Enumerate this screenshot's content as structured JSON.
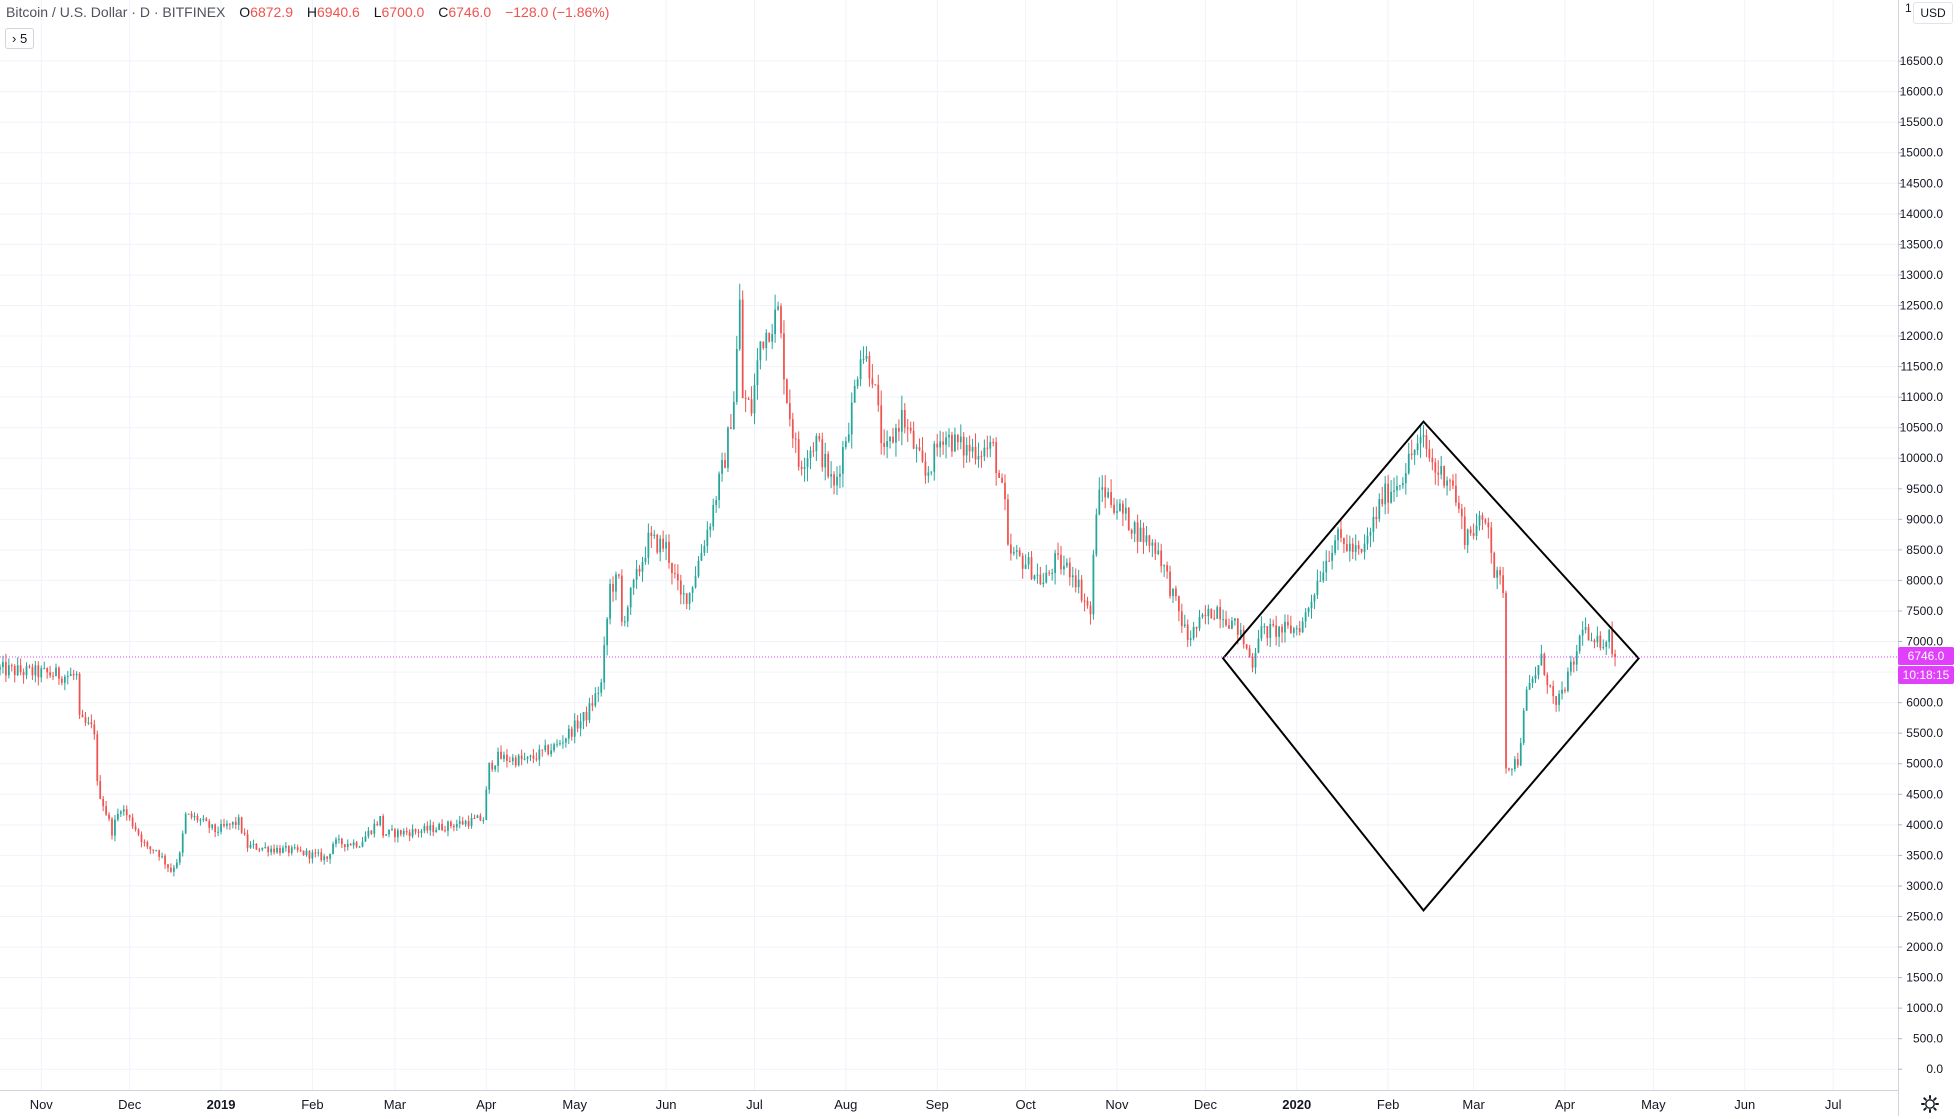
{
  "header": {
    "symbol": "Bitcoin / U.S. Dollar · D · BITFINEX",
    "o_label": "O",
    "o_value": "6872.9",
    "h_label": "H",
    "h_value": "6940.6",
    "l_label": "L",
    "l_value": "6700.0",
    "c_label": "C",
    "c_value": "6746.0",
    "change": "−128.0 (−1.86%)",
    "indicator_button": "› 5"
  },
  "price_scale": {
    "currency": "USD",
    "top_tick": "1",
    "last_price": "6746.0",
    "countdown": "10:18:15"
  },
  "colors": {
    "up": "#26a69a",
    "down": "#ef5350",
    "last_price_line": "#e040fb",
    "grid": "#f0f3fa",
    "axis_text": "#131722",
    "shape": "#000000"
  },
  "chart_data": {
    "type": "candlestick",
    "symbol": "Bitcoin / U.S. Dollar",
    "interval": "D",
    "exchange": "BITFINEX",
    "last_price": 6746.0,
    "y_ticks": [
      0,
      500,
      1000,
      1500,
      2000,
      2500,
      3000,
      3500,
      4000,
      4500,
      5000,
      5500,
      6000,
      6500,
      7000,
      7500,
      8000,
      8500,
      9000,
      9500,
      10000,
      10500,
      11000,
      11500,
      12000,
      12500,
      13000,
      13500,
      14000,
      14500,
      15000,
      15500,
      16000,
      16500
    ],
    "x_labels": [
      "Nov",
      "Dec",
      "2019",
      "Feb",
      "Mar",
      "Apr",
      "May",
      "Jun",
      "Jul",
      "Aug",
      "Sep",
      "Oct",
      "Nov",
      "Dec",
      "2020",
      "Feb",
      "Mar",
      "Apr",
      "May",
      "Jun",
      "Jul"
    ],
    "x_label_dates": [
      "2018-11-01",
      "2018-12-01",
      "2019-01-01",
      "2019-02-01",
      "2019-03-01",
      "2019-04-01",
      "2019-05-01",
      "2019-06-01",
      "2019-07-01",
      "2019-08-01",
      "2019-09-01",
      "2019-10-01",
      "2019-11-01",
      "2019-12-01",
      "2020-01-01",
      "2020-02-01",
      "2020-03-01",
      "2020-04-01",
      "2020-05-01",
      "2020-06-01",
      "2020-07-01"
    ],
    "x_range": [
      "2018-10-18",
      "2020-07-23"
    ],
    "y_range": [
      -340,
      17500
    ],
    "close_path": [
      [
        "2018-10-18",
        6540
      ],
      [
        "2018-11-13",
        6430
      ],
      [
        "2018-11-14",
        5700
      ],
      [
        "2018-11-19",
        5550
      ],
      [
        "2018-11-20",
        4650
      ],
      [
        "2018-11-25",
        3900
      ],
      [
        "2018-11-28",
        4300
      ],
      [
        "2018-12-03",
        3950
      ],
      [
        "2018-12-07",
        3600
      ],
      [
        "2018-12-10",
        3600
      ],
      [
        "2018-12-15",
        3250
      ],
      [
        "2018-12-18",
        3500
      ],
      [
        "2018-12-20",
        4150
      ],
      [
        "2018-12-24",
        4100
      ],
      [
        "2018-12-30",
        3900
      ],
      [
        "2019-01-07",
        4050
      ],
      [
        "2019-01-10",
        3650
      ],
      [
        "2019-01-20",
        3600
      ],
      [
        "2019-01-27",
        3560
      ],
      [
        "2019-02-06",
        3450
      ],
      [
        "2019-02-08",
        3700
      ],
      [
        "2019-02-17",
        3700
      ],
      [
        "2019-02-24",
        4100
      ],
      [
        "2019-02-25",
        3850
      ],
      [
        "2019-03-10",
        3900
      ],
      [
        "2019-03-20",
        4000
      ],
      [
        "2019-03-31",
        4100
      ],
      [
        "2019-04-02",
        4950
      ],
      [
        "2019-04-05",
        5100
      ],
      [
        "2019-04-15",
        5050
      ],
      [
        "2019-04-25",
        5300
      ],
      [
        "2019-05-05",
        5800
      ],
      [
        "2019-05-10",
        6300
      ],
      [
        "2019-05-13",
        7900
      ],
      [
        "2019-05-16",
        8000
      ],
      [
        "2019-05-17",
        7300
      ],
      [
        "2019-05-26",
        8650
      ],
      [
        "2019-06-01",
        8550
      ],
      [
        "2019-06-06",
        7700
      ],
      [
        "2019-06-09",
        7800
      ],
      [
        "2019-06-16",
        9000
      ],
      [
        "2019-06-21",
        10000
      ],
      [
        "2019-06-24",
        11000
      ],
      [
        "2019-06-26",
        12500
      ],
      [
        "2019-06-27",
        11000
      ],
      [
        "2019-06-30",
        10800
      ],
      [
        "2019-07-03",
        11900
      ],
      [
        "2019-07-09",
        12400
      ],
      [
        "2019-07-12",
        11000
      ],
      [
        "2019-07-16",
        9900
      ],
      [
        "2019-07-22",
        10300
      ],
      [
        "2019-07-28",
        9500
      ],
      [
        "2019-08-03",
        10800
      ],
      [
        "2019-08-06",
        11800
      ],
      [
        "2019-08-10",
        11400
      ],
      [
        "2019-08-14",
        10000
      ],
      [
        "2019-08-20",
        10700
      ],
      [
        "2019-08-28",
        9700
      ],
      [
        "2019-09-03",
        10400
      ],
      [
        "2019-09-10",
        10150
      ],
      [
        "2019-09-20",
        10150
      ],
      [
        "2019-09-24",
        9200
      ],
      [
        "2019-09-25",
        8450
      ],
      [
        "2019-10-01",
        8300
      ],
      [
        "2019-10-07",
        7950
      ],
      [
        "2019-10-11",
        8300
      ],
      [
        "2019-10-17",
        8150
      ],
      [
        "2019-10-23",
        7450
      ],
      [
        "2019-10-25",
        9200
      ],
      [
        "2019-10-27",
        9500
      ],
      [
        "2019-11-01",
        9200
      ],
      [
        "2019-11-08",
        8800
      ],
      [
        "2019-11-15",
        8500
      ],
      [
        "2019-11-21",
        7600
      ],
      [
        "2019-11-25",
        7050
      ],
      [
        "2019-12-01",
        7400
      ],
      [
        "2019-12-05",
        7550
      ],
      [
        "2019-12-12",
        7200
      ],
      [
        "2019-12-17",
        6650
      ],
      [
        "2019-12-19",
        7150
      ],
      [
        "2019-12-31",
        7200
      ],
      [
        "2020-01-03",
        7300
      ],
      [
        "2020-01-08",
        8000
      ],
      [
        "2020-01-14",
        8700
      ],
      [
        "2020-01-23",
        8400
      ],
      [
        "2020-01-30",
        9350
      ],
      [
        "2020-02-05",
        9650
      ],
      [
        "2020-02-10",
        10150
      ],
      [
        "2020-02-13",
        10250
      ],
      [
        "2020-02-17",
        9800
      ],
      [
        "2020-02-22",
        9700
      ],
      [
        "2020-02-27",
        8750
      ],
      [
        "2020-03-06",
        9000
      ],
      [
        "2020-03-08",
        8100
      ],
      [
        "2020-03-11",
        7900
      ],
      [
        "2020-03-12",
        4950
      ],
      [
        "2020-03-16",
        5050
      ],
      [
        "2020-03-19",
        6150
      ],
      [
        "2020-03-24",
        6700
      ],
      [
        "2020-03-29",
        5900
      ],
      [
        "2020-04-05",
        6800
      ],
      [
        "2020-04-07",
        7300
      ],
      [
        "2020-04-10",
        6900
      ],
      [
        "2020-04-16",
        7100
      ],
      [
        "2020-04-18",
        6746
      ]
    ],
    "drawings": [
      {
        "type": "diamond",
        "vertices": [
          [
            "2019-12-07",
            6725
          ],
          [
            "2020-02-13",
            10600
          ],
          [
            "2020-04-26",
            6725
          ],
          [
            "2020-02-13",
            2600
          ]
        ]
      }
    ]
  }
}
